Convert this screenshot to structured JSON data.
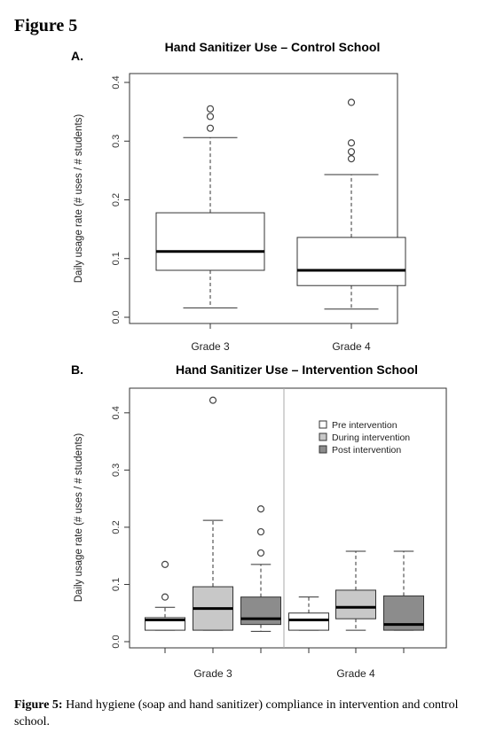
{
  "figure_label": "Figure 5",
  "caption": {
    "label": "Figure 5:",
    "text": "Hand hygiene (soap and hand sanitizer) compliance in intervention and control school."
  },
  "colors": {
    "pre": "#ffffff",
    "during": "#c8c8c8",
    "post": "#8c8c8c"
  },
  "chart_data": [
    {
      "type": "box",
      "panel_label": "A.",
      "title": "Hand Sanitizer Use – Control School",
      "ylabel": "Daily usage rate (# uses / # students)",
      "ylim": [
        0,
        0.4
      ],
      "yticks": [
        "0.0",
        "0.1",
        "0.2",
        "0.3",
        "0.4"
      ],
      "categories": [
        "Grade 3",
        "Grade 4"
      ],
      "boxes": [
        {
          "category": "Grade 3",
          "min": 0.016,
          "q1": 0.08,
          "median": 0.112,
          "q3": 0.178,
          "max": 0.306,
          "outliers": [
            0.322,
            0.342,
            0.355
          ]
        },
        {
          "category": "Grade 4",
          "min": 0.014,
          "q1": 0.054,
          "median": 0.08,
          "q3": 0.136,
          "max": 0.243,
          "outliers": [
            0.27,
            0.282,
            0.297,
            0.366
          ]
        }
      ]
    },
    {
      "type": "box",
      "panel_label": "B.",
      "title": "Hand Sanitizer Use – Intervention School",
      "ylabel": "Daily usage rate (# uses / # students)",
      "ylim": [
        0,
        0.44
      ],
      "yticks": [
        "0.0",
        "0.1",
        "0.2",
        "0.3",
        "0.4"
      ],
      "categories": [
        "Grade 3",
        "Grade 4"
      ],
      "legend": {
        "placement": "top-right",
        "entries": [
          "Pre intervention",
          "During intervention",
          "Post intervention"
        ]
      },
      "boxes": [
        {
          "category": "Grade 3",
          "phase": "Pre intervention",
          "min": 0.02,
          "q1": 0.02,
          "median": 0.038,
          "q3": 0.042,
          "max": 0.06,
          "outliers": [
            0.078,
            0.135
          ]
        },
        {
          "category": "Grade 3",
          "phase": "During intervention",
          "min": 0.02,
          "q1": 0.02,
          "median": 0.058,
          "q3": 0.096,
          "max": 0.212,
          "outliers": [
            0.422
          ]
        },
        {
          "category": "Grade 3",
          "phase": "Post intervention",
          "min": 0.018,
          "q1": 0.03,
          "median": 0.04,
          "q3": 0.078,
          "max": 0.135,
          "outliers": [
            0.155,
            0.192,
            0.232
          ]
        },
        {
          "category": "Grade 4",
          "phase": "Pre intervention",
          "min": 0.02,
          "q1": 0.02,
          "median": 0.038,
          "q3": 0.05,
          "max": 0.078,
          "outliers": []
        },
        {
          "category": "Grade 4",
          "phase": "During intervention",
          "min": 0.02,
          "q1": 0.04,
          "median": 0.06,
          "q3": 0.09,
          "max": 0.158,
          "outliers": []
        },
        {
          "category": "Grade 4",
          "phase": "Post intervention",
          "min": 0.02,
          "q1": 0.02,
          "median": 0.03,
          "q3": 0.08,
          "max": 0.158,
          "outliers": []
        }
      ]
    }
  ]
}
